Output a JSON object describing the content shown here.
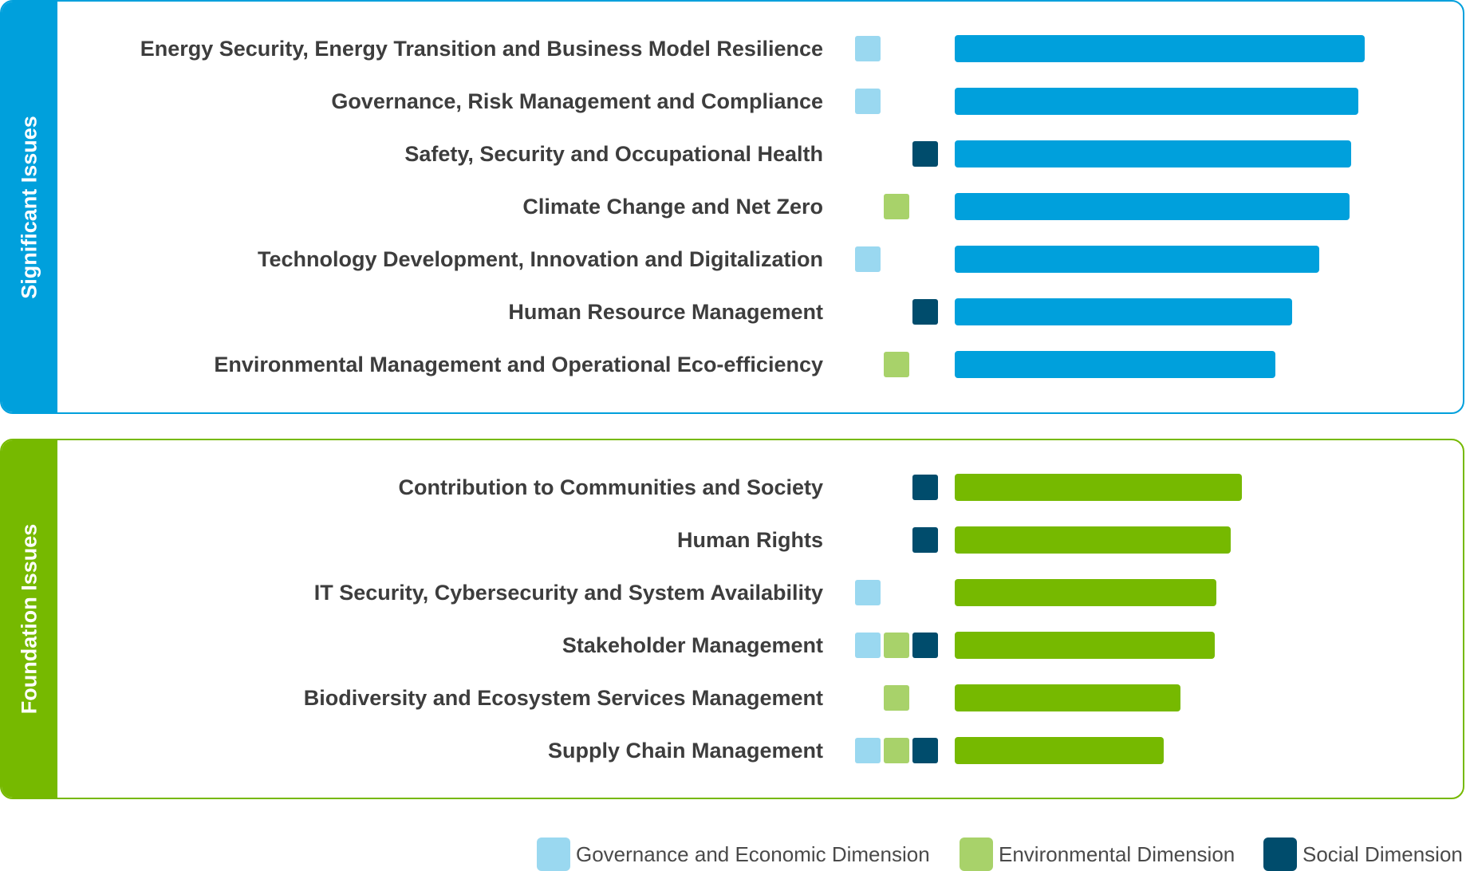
{
  "colors": {
    "significant": "#00a0dc",
    "foundation": "#76b900",
    "governance": "#9ad8f0",
    "environmental": "#a8d26a",
    "social": "#004c6c"
  },
  "chart_data": {
    "type": "bar",
    "orientation": "horizontal",
    "groups": [
      {
        "name": "Significant Issues",
        "items": [
          {
            "label": "Energy Security, Energy Transition and Business Model Resilience",
            "value": 100,
            "dimensions": [
              "governance"
            ]
          },
          {
            "label": "Governance, Risk Management and Compliance",
            "value": 98.4,
            "dimensions": [
              "governance"
            ]
          },
          {
            "label": "Safety, Security and Occupational Health",
            "value": 96.6,
            "dimensions": [
              "social"
            ]
          },
          {
            "label": "Climate Change and Net Zero",
            "value": 96.4,
            "dimensions": [
              "environmental"
            ]
          },
          {
            "label": "Technology Development, Innovation and Digitalization",
            "value": 88.9,
            "dimensions": [
              "governance"
            ]
          },
          {
            "label": "Human Resource Management",
            "value": 82.3,
            "dimensions": [
              "social"
            ]
          },
          {
            "label": "Environmental Management and Operational Eco-efficiency",
            "value": 78.3,
            "dimensions": [
              "environmental"
            ]
          }
        ]
      },
      {
        "name": "Foundation Issues",
        "items": [
          {
            "label": "Contribution to Communities and Society",
            "value": 70.1,
            "dimensions": [
              "social"
            ]
          },
          {
            "label": "Human Rights",
            "value": 67.4,
            "dimensions": [
              "social"
            ]
          },
          {
            "label": "IT Security, Cybersecurity and System Availability",
            "value": 63.9,
            "dimensions": [
              "governance"
            ]
          },
          {
            "label": "Stakeholder Management",
            "value": 63.5,
            "dimensions": [
              "governance",
              "environmental",
              "social"
            ]
          },
          {
            "label": "Biodiversity and Ecosystem Services Management",
            "value": 55.0,
            "dimensions": [
              "environmental"
            ]
          },
          {
            "label": "Supply Chain Management",
            "value": 51.0,
            "dimensions": [
              "governance",
              "environmental",
              "social"
            ]
          }
        ]
      }
    ],
    "legend": [
      {
        "key": "governance",
        "label": "Governance and Economic Dimension"
      },
      {
        "key": "environmental",
        "label": "Environmental Dimension"
      },
      {
        "key": "social",
        "label": "Social Dimension"
      }
    ]
  }
}
